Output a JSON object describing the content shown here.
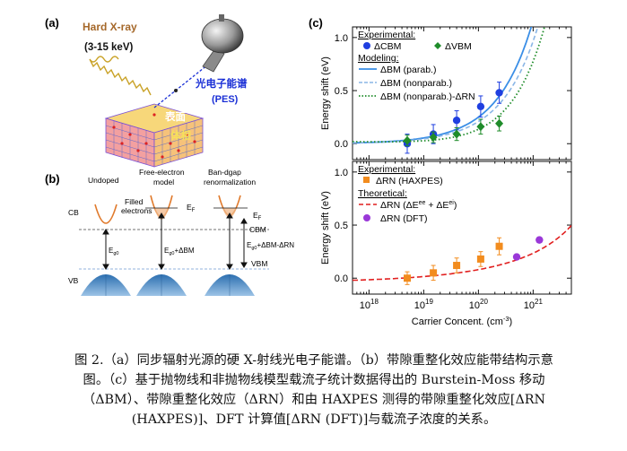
{
  "panels": {
    "a": {
      "label": "(a)",
      "xray_label": "Hard X-ray",
      "energy_label": "(3-15 keV)",
      "pes_label": "光电子能谱",
      "pes_sub": "(PES)",
      "surface_label": "表面",
      "bulk_label": "体相"
    },
    "b": {
      "label": "(b)",
      "col1_title": "Undoped",
      "col2_title_1": "Free-electron",
      "col2_title_2": "model",
      "col3_title_1": "Ban-dgap",
      "col3_title_2": "renormalization",
      "filled_1": "Filled",
      "filled_2": "electrons",
      "cb": "CB",
      "vb": "VB",
      "ef": "E",
      "ef_sub": "F",
      "eg0": "E",
      "eg0_sub": "g0",
      "eg_bm": "+ΔBM",
      "eg_bm_rn": "+ΔBM-ΔRN",
      "cbm": "CBM",
      "vbm": "VBM"
    },
    "c": {
      "label": "(c)"
    }
  },
  "chart_data": [
    {
      "type": "scatter",
      "panel": "c-top",
      "ylabel": "Energy shift (eV)",
      "x_scale": "log",
      "xlim": [
        5e+17,
        5e+21
      ],
      "ylim": [
        -0.15,
        1.1
      ],
      "yticks": [
        "0.0",
        "0.5",
        "1.0"
      ],
      "legend_heading_1": "Experimental:",
      "legend_heading_2": "Modeling:",
      "series": [
        {
          "name": "ΔCBM",
          "color": "#1f3fe0",
          "marker": "circle",
          "x": [
            5e+18,
            1.5e+19,
            4e+19,
            1.1e+20,
            2.4e+20
          ],
          "y": [
            0.0,
            0.09,
            0.22,
            0.35,
            0.48
          ],
          "err": [
            0.09,
            0.09,
            0.09,
            0.1,
            0.1
          ]
        },
        {
          "name": "ΔVBM",
          "color": "#1f8c2a",
          "marker": "diamond",
          "x": [
            5e+18,
            1.5e+19,
            4e+19,
            1.1e+20,
            2.4e+20
          ],
          "y": [
            0.03,
            0.06,
            0.09,
            0.16,
            0.19
          ],
          "err": [
            0.05,
            0.05,
            0.06,
            0.07,
            0.07
          ]
        },
        {
          "name": "ΔBM (parab.)",
          "color": "#3a8ee6",
          "line": "solid"
        },
        {
          "name": "ΔBM (nonparab.)",
          "color": "#8ab6e6",
          "line": "dashed"
        },
        {
          "name": "ΔBM (nonparab.)-ΔRN",
          "color": "#1f8c2a",
          "line": "dotted"
        }
      ]
    },
    {
      "type": "scatter",
      "panel": "c-bottom",
      "xlabel": "Carrier Concent. (cm",
      "xlabel_sup": "-3",
      "xlabel_end": ")",
      "ylabel": "Energy shift (eV)",
      "x_scale": "log",
      "xlim": [
        5e+17,
        5e+21
      ],
      "ylim": [
        -0.15,
        1.1
      ],
      "yticks": [
        "0.0",
        "0.5",
        "1.0"
      ],
      "xticks": [
        {
          "base": "10",
          "exp": "18"
        },
        {
          "base": "10",
          "exp": "19"
        },
        {
          "base": "10",
          "exp": "20"
        },
        {
          "base": "10",
          "exp": "21"
        }
      ],
      "legend_heading_1": "Experimental:",
      "legend_heading_2": "Theoretical:",
      "series": [
        {
          "name": "ΔRN (HAXPES)",
          "color": "#f28c1e",
          "marker": "square",
          "x": [
            5e+18,
            1.5e+19,
            4e+19,
            1.1e+20,
            2.4e+20
          ],
          "y": [
            0.0,
            0.05,
            0.12,
            0.18,
            0.3
          ],
          "err": [
            0.06,
            0.07,
            0.07,
            0.07,
            0.08
          ]
        },
        {
          "name": "ΔRN (ΔE",
          "name_sup1": "ee",
          "name_mid": " + ΔE",
          "name_sup2": "ei",
          "name_end": ")",
          "color": "#e11f1f",
          "line": "dashed"
        },
        {
          "name": "ΔRN (DFT)",
          "color": "#9a38d8",
          "marker": "circle",
          "x": [
            5e+20,
            1.3e+21
          ],
          "y": [
            0.2,
            0.36
          ]
        }
      ]
    }
  ],
  "caption": {
    "line1": "图 2.（a）同步辐射光源的硬 X-射线光电子能谱。（b）带隙重整化效应能带结构示意",
    "line2": "图。（c）基于抛物线和非抛物线模型载流子统计数据得出的 Burstein-Moss 移动",
    "line3": "（ΔBM）、带隙重整化效应（ΔRN）和由 HAXPES 测得的带隙重整化效应[ΔRN",
    "line4": "(HAXPES)]、DFT 计算值[ΔRN (DFT)]与载流子浓度的关系。"
  }
}
